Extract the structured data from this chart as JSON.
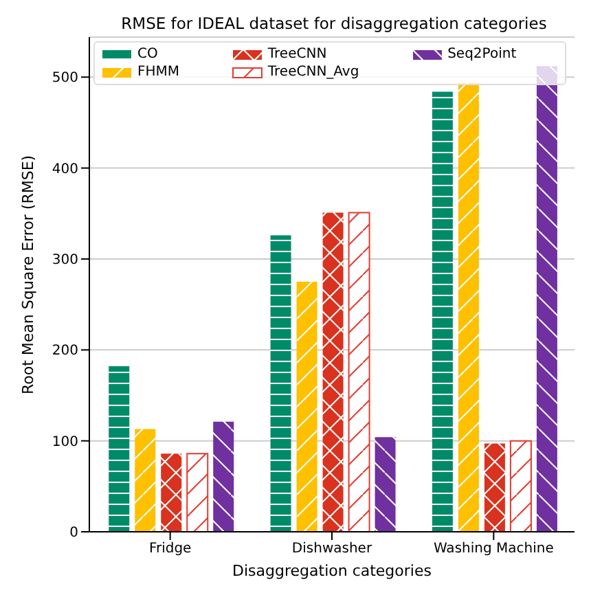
{
  "chart_data": {
    "type": "bar",
    "title": "RMSE for IDEAL dataset for disaggregation categories",
    "xlabel": "Disaggregation categories",
    "ylabel": "Root Mean Square Error (RMSE)",
    "categories": [
      "Fridge",
      "Dishwasher",
      "Washing Machine"
    ],
    "series": [
      {
        "name": "CO",
        "color": "#008b68",
        "values": [
          182,
          326,
          484
        ]
      },
      {
        "name": "FHMM",
        "color": "#ffc000",
        "values": [
          113,
          275,
          494
        ]
      },
      {
        "name": "TreeCNN",
        "color": "#d9321f",
        "values": [
          86,
          351,
          97
        ]
      },
      {
        "name": "TreeCNN_Avg",
        "color": "#e03c31",
        "values": [
          86,
          351,
          100
        ]
      },
      {
        "name": "Seq2Point",
        "color": "#7030a0",
        "values": [
          121,
          104,
          512
        ]
      }
    ],
    "ylim": [
      0,
      544
    ],
    "yticks": [
      0,
      100,
      200,
      300,
      400,
      500
    ],
    "grid": "y",
    "legend": "top left"
  }
}
